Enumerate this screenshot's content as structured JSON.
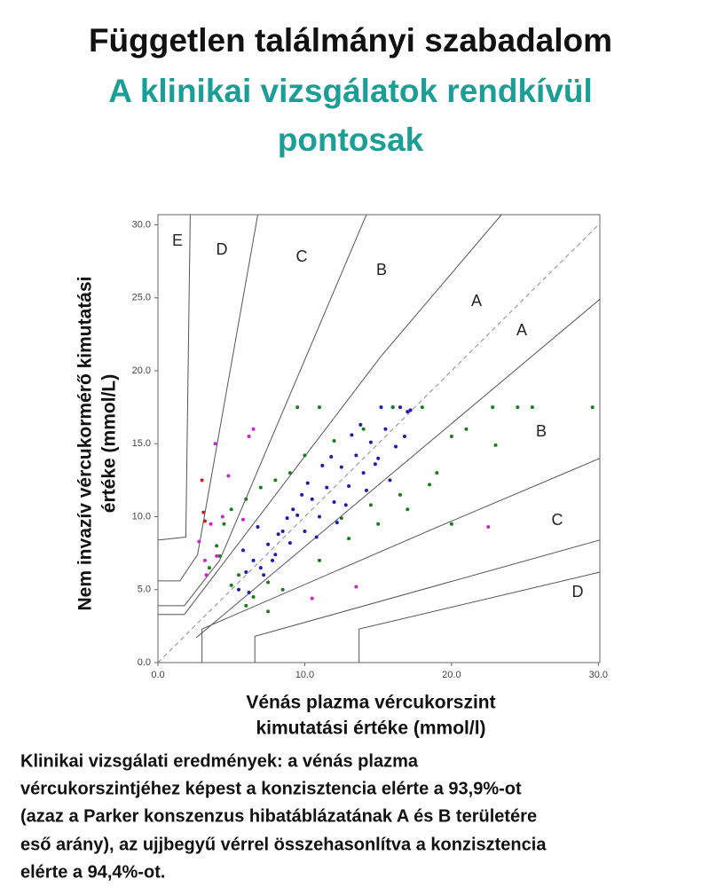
{
  "header": {
    "title": "Független találmányi szabadalom",
    "subtitle": [
      "A klinikai vizsgálatok rendkívül",
      "pontosak"
    ]
  },
  "chart_data": {
    "type": "scatter",
    "xlabel": [
      "Vénás plazma vércukorszint",
      "kimutatási értéke (mmol/l)"
    ],
    "ylabel": [
      "Nem invazív vércukormérő kimutatási",
      "értéke (mmol/L)"
    ],
    "xlim": [
      0,
      30.1
    ],
    "ylim": [
      0,
      30.7
    ],
    "xticks": [
      {
        "value": 0,
        "label": "0.0"
      },
      {
        "value": 10,
        "label": "10.0"
      },
      {
        "value": 20,
        "label": "20.0"
      },
      {
        "value": 30,
        "label": "30.0"
      }
    ],
    "yticks": [
      {
        "value": 0,
        "label": "0.0"
      },
      {
        "value": 5,
        "label": "5.0"
      },
      {
        "value": 10,
        "label": "10.0"
      },
      {
        "value": 15,
        "label": "15.0"
      },
      {
        "value": 20,
        "label": "20.0"
      },
      {
        "value": 25,
        "label": "25.0"
      },
      {
        "value": 30,
        "label": "30.0"
      }
    ],
    "zone_labels": [
      "E",
      "D",
      "C",
      "B",
      "A",
      "A",
      "B",
      "C",
      "D"
    ],
    "boundary_color": "#555555",
    "identity_color": "#888888",
    "boundaries": [
      {
        "x": [
          0,
          1.9,
          2.2
        ],
        "y": [
          8.4,
          8.6,
          30.7
        ]
      },
      {
        "x": [
          0,
          1.5,
          2.7,
          6.8
        ],
        "y": [
          5.6,
          5.6,
          7.4,
          30.7
        ]
      },
      {
        "x": [
          0,
          1.8,
          4.2,
          14.2
        ],
        "y": [
          3.9,
          3.9,
          7.0,
          30.7
        ]
      },
      {
        "x": [
          0,
          1.8,
          15.2,
          23.4
        ],
        "y": [
          3.3,
          3.3,
          21.0,
          30.7
        ]
      },
      {
        "x": [
          2.6,
          30.1
        ],
        "y": [
          1.7,
          24.9
        ]
      },
      {
        "x": [
          3.0,
          3.0,
          18.6,
          30.1
        ],
        "y": [
          0,
          2.3,
          9.1,
          14.0
        ]
      },
      {
        "x": [
          6.6,
          6.6,
          30.1
        ],
        "y": [
          0,
          1.8,
          8.4
        ]
      },
      {
        "x": [
          13.7,
          13.7,
          30.1
        ],
        "y": [
          0,
          2.3,
          6.2
        ]
      }
    ],
    "identity": {
      "x": [
        0,
        30.1
      ],
      "y": [
        0,
        30.1
      ]
    },
    "series": [
      {
        "color": "#1c1cb0",
        "x": [
          5.5,
          6,
          6.5,
          7,
          7.5,
          8,
          8.5,
          9,
          9.5,
          10,
          10.5,
          11,
          11.5,
          12,
          12.5,
          13,
          13.5,
          14,
          14.5,
          15,
          15.5,
          16,
          16.5,
          17,
          6.2,
          7.2,
          8.2,
          9.2,
          10.2,
          11.2,
          12.2,
          13.2,
          14.2,
          15.2,
          16.2,
          5.8,
          7.8,
          9.8,
          11.8,
          13.8,
          15.8,
          17.2,
          16.8,
          14.8,
          12.8,
          10.8,
          8.8,
          6.8
        ],
        "y": [
          5.0,
          6.2,
          7.0,
          6.5,
          8.1,
          7.4,
          9.0,
          8.2,
          10.1,
          9.0,
          11.2,
          10.0,
          12.0,
          11.0,
          13.4,
          12.1,
          14.2,
          13.0,
          15.1,
          14.0,
          16.0,
          17.5,
          17.5,
          17.2,
          4.8,
          6.0,
          8.8,
          10.5,
          12.3,
          13.5,
          9.6,
          15.6,
          11.8,
          17.5,
          14.8,
          7.7,
          7.0,
          11.5,
          14.1,
          16.3,
          12.5,
          17.3,
          15.5,
          13.6,
          10.8,
          8.6,
          9.9,
          9.3
        ]
      },
      {
        "color": "#1d7a1d",
        "x": [
          3.5,
          4,
          4.5,
          5,
          5.5,
          6,
          6.5,
          7,
          7.5,
          8,
          9,
          10,
          11,
          12,
          13,
          14,
          15,
          16,
          17,
          18,
          19,
          20,
          21,
          22.8,
          24.5,
          25.5,
          29.6,
          23,
          20,
          18.5,
          11,
          9.5,
          8.5,
          7.5,
          6,
          5,
          4.2,
          12.5,
          14.5,
          16.5
        ],
        "y": [
          6.5,
          8.0,
          9.5,
          10.5,
          6.0,
          11.2,
          4.5,
          12.0,
          5.5,
          12.5,
          13.0,
          14.2,
          7.0,
          15.2,
          8.5,
          16.0,
          9.5,
          17.5,
          10.5,
          17.5,
          13.0,
          15.5,
          16.0,
          17.5,
          17.5,
          17.5,
          17.5,
          14.9,
          9.5,
          12.2,
          17.5,
          17.5,
          5.0,
          3.5,
          3.9,
          5.3,
          7.3,
          9.9,
          10.8,
          11.5
        ]
      },
      {
        "color": "#d21fd2",
        "x": [
          2.8,
          3.2,
          3.6,
          4.0,
          4.4,
          3.3,
          3.9,
          4.8,
          6.2,
          6.5,
          5.8,
          10.5,
          13.5,
          22.5
        ],
        "y": [
          8.3,
          7.0,
          9.5,
          7.3,
          10.0,
          6.0,
          15.0,
          12.8,
          15.5,
          16.0,
          9.8,
          4.4,
          5.2,
          9.3
        ]
      },
      {
        "color": "#c81e1e",
        "x": [
          3.0,
          3.1,
          3.2
        ],
        "y": [
          12.5,
          10.3,
          9.7
        ]
      }
    ]
  },
  "description": [
    "Klinikai vizsgálati eredmények: a vénás plazma",
    "vércukorszintjéhez képest a konzisztencia elérte a 93,9%-ot",
    "(azaz a Parker konszenzus hibatáblázatának A és B területére",
    "eső arány), az ujjbegyű vérrel összehasonlítva a konzisztencia",
    "elérte a 94,4%-ot."
  ]
}
